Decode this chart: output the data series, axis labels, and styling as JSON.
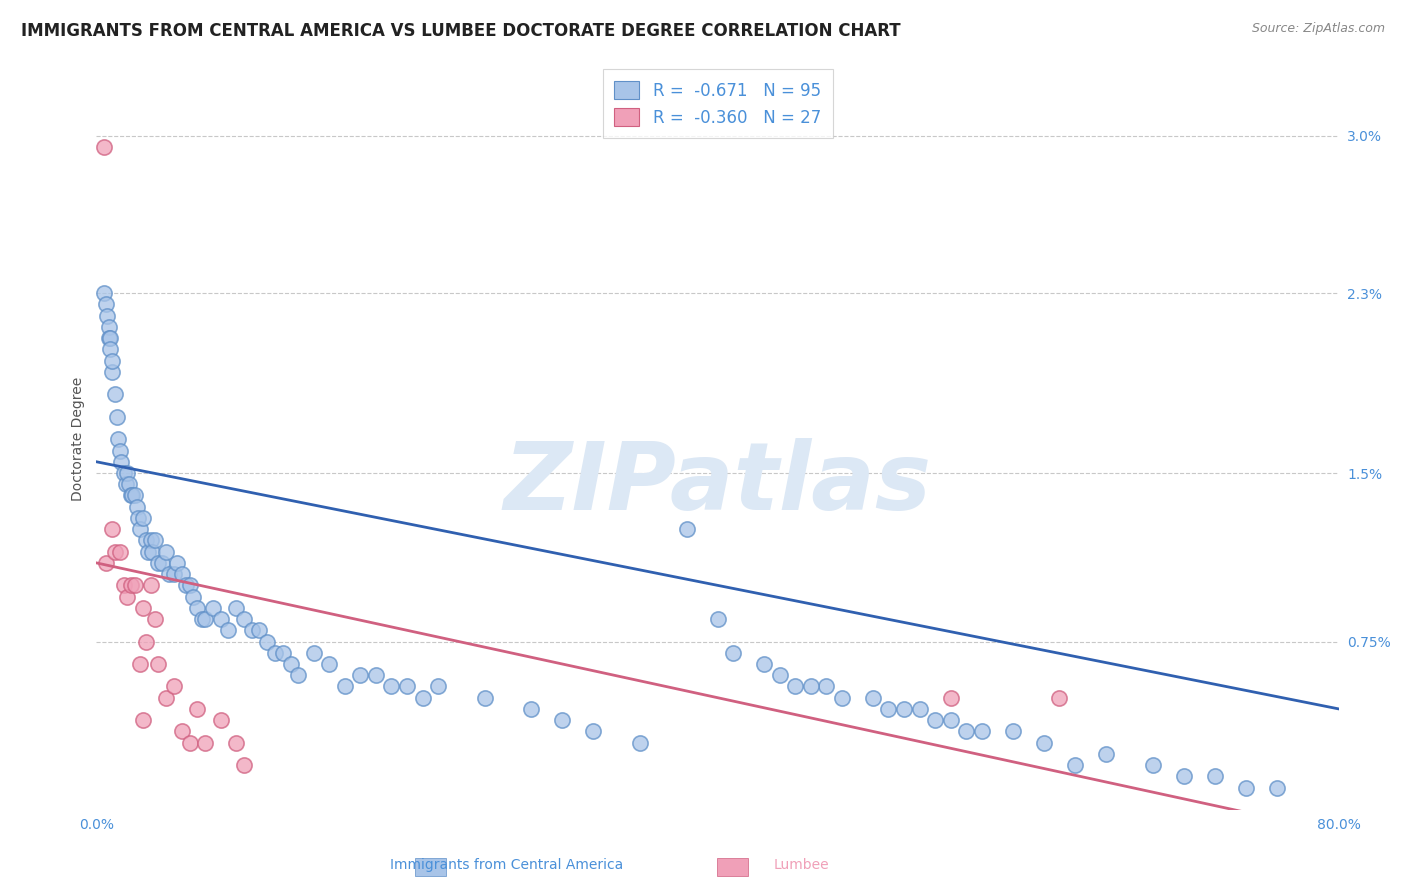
{
  "title": "IMMIGRANTS FROM CENTRAL AMERICA VS LUMBEE DOCTORATE DEGREE CORRELATION CHART",
  "source": "Source: ZipAtlas.com",
  "ylabel": "Doctorate Degree",
  "xlabel_legend1": "Immigrants from Central America",
  "xlabel_legend2": "Lumbee",
  "x_label_bottom_left": "0.0%",
  "x_label_bottom_right": "80.0%",
  "y_tick_labels": [
    "0.75%",
    "1.5%",
    "2.3%",
    "3.0%"
  ],
  "y_tick_values": [
    0.0075,
    0.015,
    0.023,
    0.03
  ],
  "xlim": [
    0.0,
    0.8
  ],
  "ylim": [
    0.0,
    0.033
  ],
  "legend_r1": "-0.671",
  "legend_n1": "95",
  "legend_r2": "-0.360",
  "legend_n2": "27",
  "blue_color": "#a8c4e8",
  "pink_color": "#f0a0b8",
  "blue_edge_color": "#6090c8",
  "pink_edge_color": "#d06080",
  "blue_line_color": "#3060b0",
  "pink_line_color": "#d06080",
  "title_color": "#222222",
  "axis_label_color": "#4a90d9",
  "tick_label_color": "#4a90d9",
  "watermark_color": "#dce8f5",
  "background_color": "#ffffff",
  "grid_color": "#c8c8c8",
  "blue_line_y_start": 0.0155,
  "blue_line_y_end": 0.0045,
  "pink_line_y_start": 0.011,
  "pink_line_y_end": -0.001,
  "blue_scatter_x": [
    0.005,
    0.006,
    0.007,
    0.008,
    0.008,
    0.009,
    0.009,
    0.01,
    0.01,
    0.012,
    0.013,
    0.014,
    0.015,
    0.016,
    0.018,
    0.019,
    0.02,
    0.021,
    0.022,
    0.023,
    0.025,
    0.026,
    0.027,
    0.028,
    0.03,
    0.032,
    0.033,
    0.035,
    0.036,
    0.038,
    0.04,
    0.042,
    0.045,
    0.047,
    0.05,
    0.052,
    0.055,
    0.058,
    0.06,
    0.062,
    0.065,
    0.068,
    0.07,
    0.075,
    0.08,
    0.085,
    0.09,
    0.095,
    0.1,
    0.105,
    0.11,
    0.115,
    0.12,
    0.125,
    0.13,
    0.14,
    0.15,
    0.16,
    0.17,
    0.18,
    0.19,
    0.2,
    0.21,
    0.22,
    0.25,
    0.28,
    0.3,
    0.32,
    0.35,
    0.38,
    0.4,
    0.41,
    0.43,
    0.45,
    0.47,
    0.5,
    0.51,
    0.53,
    0.55,
    0.57,
    0.59,
    0.61,
    0.63,
    0.65,
    0.68,
    0.7,
    0.72,
    0.74,
    0.76,
    0.44,
    0.46,
    0.48,
    0.52,
    0.54,
    0.56
  ],
  "blue_scatter_y": [
    0.023,
    0.0225,
    0.022,
    0.0215,
    0.021,
    0.021,
    0.0205,
    0.0195,
    0.02,
    0.0185,
    0.0175,
    0.0165,
    0.016,
    0.0155,
    0.015,
    0.0145,
    0.015,
    0.0145,
    0.014,
    0.014,
    0.014,
    0.0135,
    0.013,
    0.0125,
    0.013,
    0.012,
    0.0115,
    0.012,
    0.0115,
    0.012,
    0.011,
    0.011,
    0.0115,
    0.0105,
    0.0105,
    0.011,
    0.0105,
    0.01,
    0.01,
    0.0095,
    0.009,
    0.0085,
    0.0085,
    0.009,
    0.0085,
    0.008,
    0.009,
    0.0085,
    0.008,
    0.008,
    0.0075,
    0.007,
    0.007,
    0.0065,
    0.006,
    0.007,
    0.0065,
    0.0055,
    0.006,
    0.006,
    0.0055,
    0.0055,
    0.005,
    0.0055,
    0.005,
    0.0045,
    0.004,
    0.0035,
    0.003,
    0.0125,
    0.0085,
    0.007,
    0.0065,
    0.0055,
    0.0055,
    0.005,
    0.0045,
    0.0045,
    0.004,
    0.0035,
    0.0035,
    0.003,
    0.002,
    0.0025,
    0.002,
    0.0015,
    0.0015,
    0.001,
    0.001,
    0.006,
    0.0055,
    0.005,
    0.0045,
    0.004,
    0.0035
  ],
  "pink_scatter_x": [
    0.005,
    0.006,
    0.01,
    0.012,
    0.015,
    0.018,
    0.02,
    0.022,
    0.025,
    0.028,
    0.03,
    0.032,
    0.035,
    0.038,
    0.04,
    0.045,
    0.05,
    0.055,
    0.06,
    0.065,
    0.07,
    0.08,
    0.09,
    0.095,
    0.55,
    0.62,
    0.03
  ],
  "pink_scatter_y": [
    0.0295,
    0.011,
    0.0125,
    0.0115,
    0.0115,
    0.01,
    0.0095,
    0.01,
    0.01,
    0.0065,
    0.009,
    0.0075,
    0.01,
    0.0085,
    0.0065,
    0.005,
    0.0055,
    0.0035,
    0.003,
    0.0045,
    0.003,
    0.004,
    0.003,
    0.002,
    0.005,
    0.005,
    0.004
  ],
  "title_fontsize": 12,
  "source_fontsize": 9,
  "ylabel_fontsize": 10,
  "tick_fontsize": 10,
  "legend_fontsize": 12,
  "watermark_fontsize": 68,
  "scatter_size": 120,
  "scatter_linewidth": 1.2
}
